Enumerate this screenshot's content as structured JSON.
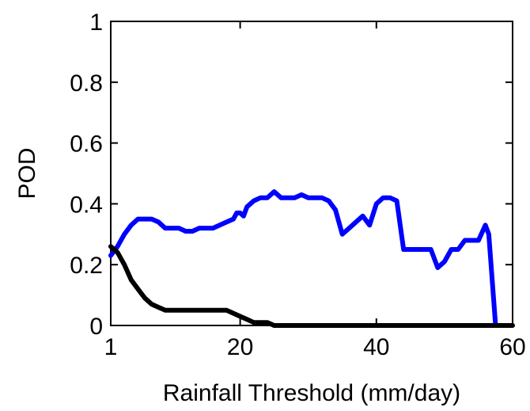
{
  "chart_data": {
    "type": "line",
    "title": "",
    "xlabel": "Rainfall Threshold (mm/day)",
    "ylabel": "POD",
    "xlim": [
      1,
      60
    ],
    "ylim": [
      0,
      1
    ],
    "xticks": [
      1,
      20,
      40,
      60
    ],
    "yticks": [
      0,
      0.2,
      0.4,
      0.6,
      0.8,
      1
    ],
    "ytick_labels": [
      "0",
      "0.2",
      "0.4",
      "0.6",
      "0.8",
      "1"
    ],
    "grid": false,
    "legend": "none",
    "series": [
      {
        "color": "#0000ff",
        "points": [
          [
            1,
            0.23
          ],
          [
            2,
            0.26
          ],
          [
            3,
            0.3
          ],
          [
            4,
            0.33
          ],
          [
            5,
            0.35
          ],
          [
            6,
            0.35
          ],
          [
            7,
            0.35
          ],
          [
            8,
            0.34
          ],
          [
            9,
            0.32
          ],
          [
            10,
            0.32
          ],
          [
            11,
            0.32
          ],
          [
            12,
            0.31
          ],
          [
            13,
            0.31
          ],
          [
            14,
            0.32
          ],
          [
            15,
            0.32
          ],
          [
            16,
            0.32
          ],
          [
            17,
            0.33
          ],
          [
            18,
            0.34
          ],
          [
            19,
            0.35
          ],
          [
            19.5,
            0.37
          ],
          [
            20,
            0.37
          ],
          [
            20.5,
            0.36
          ],
          [
            21,
            0.39
          ],
          [
            22,
            0.41
          ],
          [
            23,
            0.42
          ],
          [
            24,
            0.42
          ],
          [
            25,
            0.44
          ],
          [
            26,
            0.42
          ],
          [
            27,
            0.42
          ],
          [
            28,
            0.42
          ],
          [
            29,
            0.43
          ],
          [
            30,
            0.42
          ],
          [
            31,
            0.42
          ],
          [
            32,
            0.42
          ],
          [
            33,
            0.41
          ],
          [
            34,
            0.38
          ],
          [
            35,
            0.3
          ],
          [
            36,
            0.32
          ],
          [
            37,
            0.34
          ],
          [
            38,
            0.36
          ],
          [
            39,
            0.33
          ],
          [
            40,
            0.4
          ],
          [
            41,
            0.42
          ],
          [
            42,
            0.42
          ],
          [
            43,
            0.41
          ],
          [
            44,
            0.25
          ],
          [
            45,
            0.25
          ],
          [
            46,
            0.25
          ],
          [
            47,
            0.25
          ],
          [
            48,
            0.25
          ],
          [
            49,
            0.19
          ],
          [
            50,
            0.21
          ],
          [
            51,
            0.25
          ],
          [
            52,
            0.25
          ],
          [
            53,
            0.28
          ],
          [
            54,
            0.28
          ],
          [
            55,
            0.28
          ],
          [
            56,
            0.33
          ],
          [
            56.5,
            0.3
          ],
          [
            57.5,
            0
          ]
        ]
      },
      {
        "color": "#000000",
        "points": [
          [
            1,
            0.26
          ],
          [
            2,
            0.24
          ],
          [
            3,
            0.2
          ],
          [
            4,
            0.15
          ],
          [
            5,
            0.12
          ],
          [
            6,
            0.09
          ],
          [
            7,
            0.07
          ],
          [
            8,
            0.06
          ],
          [
            9,
            0.05
          ],
          [
            10,
            0.05
          ],
          [
            11,
            0.05
          ],
          [
            12,
            0.05
          ],
          [
            13,
            0.05
          ],
          [
            14,
            0.05
          ],
          [
            15,
            0.05
          ],
          [
            16,
            0.05
          ],
          [
            17,
            0.05
          ],
          [
            18,
            0.05
          ],
          [
            19,
            0.04
          ],
          [
            20,
            0.03
          ],
          [
            21,
            0.02
          ],
          [
            22,
            0.01
          ],
          [
            23,
            0.01
          ],
          [
            24,
            0.01
          ],
          [
            25,
            0
          ],
          [
            30,
            0
          ],
          [
            40,
            0
          ],
          [
            50,
            0
          ],
          [
            60,
            0
          ]
        ]
      }
    ]
  }
}
